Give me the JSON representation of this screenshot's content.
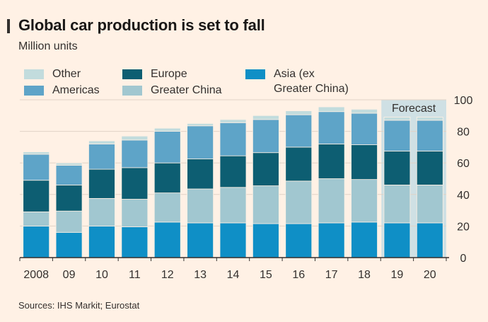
{
  "title": "Global car production is set to fall",
  "subtitle": "Million units",
  "source": "Sources: IHS Markit; Eurostat",
  "forecast_label": "Forecast",
  "colors": {
    "background": "#fff1e5",
    "asia": "#0f8fc6",
    "greater_china": "#a1c7d0",
    "europe": "#0d5e72",
    "americas": "#5ea4c8",
    "other": "#c2dcdd",
    "forecast_band": "#cfe0e4",
    "axis": "#33302e",
    "grid": "#e0d3c6"
  },
  "legend": [
    {
      "label": "Other",
      "color": "#c2dcdd"
    },
    {
      "label": "Europe",
      "color": "#0d5e72"
    },
    {
      "label": "Asia (ex\nGreater China)",
      "color": "#0f8fc6"
    },
    {
      "label": "Americas",
      "color": "#5ea4c8"
    },
    {
      "label": "Greater China",
      "color": "#a1c7d0"
    }
  ],
  "chart_data": {
    "type": "bar",
    "stacked": true,
    "categories": [
      "2008",
      "09",
      "10",
      "11",
      "12",
      "13",
      "14",
      "15",
      "16",
      "17",
      "18",
      "19",
      "20"
    ],
    "series": [
      {
        "name": "Asia (ex Greater China)",
        "color": "#0f8fc6",
        "values": [
          20,
          16,
          20,
          19.5,
          22.5,
          22,
          22,
          21.5,
          21.5,
          22,
          22.5,
          22,
          22
        ]
      },
      {
        "name": "Greater China",
        "color": "#a1c7d0",
        "values": [
          9,
          13.5,
          17.5,
          17.5,
          18.5,
          21.5,
          22.5,
          24,
          27,
          28,
          27,
          24,
          24
        ]
      },
      {
        "name": "Europe",
        "color": "#0d5e72",
        "values": [
          20,
          16.5,
          18.5,
          20,
          19,
          19,
          20,
          21,
          21.5,
          22,
          22,
          21.5,
          21.5
        ]
      },
      {
        "name": "Americas",
        "color": "#5ea4c8",
        "values": [
          16.5,
          12.5,
          16,
          17.5,
          20,
          21,
          21,
          21,
          20.5,
          20.5,
          20,
          19.5,
          19.5
        ]
      },
      {
        "name": "Other",
        "color": "#c2dcdd",
        "values": [
          1.5,
          1.5,
          2,
          2.5,
          2,
          1.5,
          2,
          2.5,
          2.5,
          3,
          2.5,
          2,
          2
        ]
      }
    ],
    "forecast_categories": [
      "19",
      "20"
    ],
    "ylim": [
      0,
      100
    ],
    "yticks": [
      0,
      20,
      40,
      60,
      80,
      100
    ],
    "xlabel": "",
    "ylabel": "",
    "grid": true,
    "y_axis_position": "right",
    "legend_position": "top-left"
  }
}
